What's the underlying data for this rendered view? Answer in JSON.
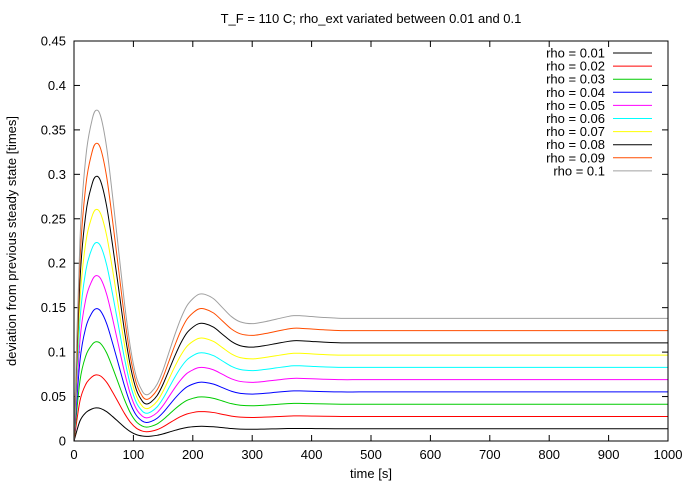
{
  "chart_data": {
    "type": "line",
    "title": "T_F = 110 C; rho_ext variated between 0.01 and 0.1",
    "xlabel": "time [s]",
    "ylabel": "deviation from previous steady state [times]",
    "xlim": [
      0,
      1000
    ],
    "ylim": [
      0,
      0.45
    ],
    "x_ticks": [
      0,
      100,
      200,
      300,
      400,
      500,
      600,
      700,
      800,
      900,
      1000
    ],
    "y_ticks": [
      0,
      0.05,
      0.1,
      0.15,
      0.2,
      0.25,
      0.3,
      0.35,
      0.4,
      0.45
    ],
    "x_tick_labels": [
      "0",
      "100",
      "200",
      "300",
      "400",
      "500",
      "600",
      "700",
      "800",
      "900",
      "1000"
    ],
    "y_tick_labels": [
      "0",
      "0.05",
      "0.1",
      "0.15",
      "0.2",
      "0.25",
      "0.3",
      "0.35",
      "0.4",
      "0.45"
    ],
    "grid": false,
    "legend_position": "top-right",
    "x": [
      0,
      10,
      20,
      30,
      37,
      45,
      55,
      65,
      75,
      85,
      95,
      105,
      115,
      122,
      130,
      140,
      150,
      160,
      170,
      180,
      190,
      200,
      210,
      220,
      235,
      250,
      265,
      280,
      300,
      320,
      340,
      360,
      370,
      380,
      400,
      420,
      450,
      480,
      520,
      600,
      700,
      800,
      900,
      1000
    ],
    "series": [
      {
        "name": "rho = 0.01",
        "color": "#000000",
        "values": [
          0,
          0.0225,
          0.032,
          0.036,
          0.0372,
          0.0365,
          0.033,
          0.0275,
          0.0215,
          0.0155,
          0.0105,
          0.0072,
          0.0056,
          0.0052,
          0.0055,
          0.0064,
          0.008,
          0.01,
          0.012,
          0.0138,
          0.0152,
          0.016,
          0.0165,
          0.0165,
          0.016,
          0.015,
          0.014,
          0.0134,
          0.0132,
          0.0134,
          0.0137,
          0.014,
          0.0141,
          0.0141,
          0.014,
          0.0139,
          0.0138,
          0.0138,
          0.0138,
          0.0138,
          0.0138,
          0.0138,
          0.0138,
          0.0138
        ]
      },
      {
        "name": "rho = 0.02",
        "color": "#ff0000",
        "values": [
          0,
          0.045,
          0.064,
          0.072,
          0.0744,
          0.073,
          0.066,
          0.055,
          0.043,
          0.031,
          0.021,
          0.0144,
          0.0112,
          0.0104,
          0.011,
          0.0128,
          0.016,
          0.02,
          0.024,
          0.0276,
          0.0304,
          0.032,
          0.033,
          0.033,
          0.032,
          0.03,
          0.028,
          0.0268,
          0.0264,
          0.0268,
          0.0274,
          0.028,
          0.0282,
          0.0282,
          0.028,
          0.0278,
          0.0276,
          0.0276,
          0.0276,
          0.0276,
          0.0276,
          0.0276,
          0.0276,
          0.0276
        ]
      },
      {
        "name": "rho = 0.03",
        "color": "#00cc00",
        "values": [
          0,
          0.0675,
          0.096,
          0.108,
          0.1116,
          0.1095,
          0.099,
          0.0825,
          0.0645,
          0.0465,
          0.0315,
          0.0216,
          0.0168,
          0.0156,
          0.0165,
          0.0192,
          0.024,
          0.03,
          0.036,
          0.0414,
          0.0456,
          0.048,
          0.0495,
          0.0495,
          0.048,
          0.045,
          0.042,
          0.0402,
          0.0396,
          0.0402,
          0.0411,
          0.042,
          0.0423,
          0.0423,
          0.042,
          0.0417,
          0.0414,
          0.0414,
          0.0414,
          0.0414,
          0.0414,
          0.0414,
          0.0414,
          0.0414
        ]
      },
      {
        "name": "rho = 0.04",
        "color": "#0000ff",
        "values": [
          0,
          0.09,
          0.128,
          0.144,
          0.1488,
          0.146,
          0.132,
          0.11,
          0.086,
          0.062,
          0.042,
          0.0288,
          0.0224,
          0.0208,
          0.022,
          0.0256,
          0.032,
          0.04,
          0.048,
          0.0552,
          0.0608,
          0.064,
          0.066,
          0.066,
          0.064,
          0.06,
          0.056,
          0.0536,
          0.0528,
          0.0536,
          0.0548,
          0.056,
          0.0564,
          0.0564,
          0.056,
          0.0556,
          0.0552,
          0.0552,
          0.0552,
          0.0552,
          0.0552,
          0.0552,
          0.0552,
          0.0552
        ]
      },
      {
        "name": "rho = 0.05",
        "color": "#ff00ff",
        "values": [
          0,
          0.1125,
          0.16,
          0.18,
          0.186,
          0.1825,
          0.165,
          0.1375,
          0.1075,
          0.0775,
          0.0525,
          0.036,
          0.028,
          0.026,
          0.0275,
          0.032,
          0.04,
          0.05,
          0.06,
          0.069,
          0.076,
          0.08,
          0.0825,
          0.0825,
          0.08,
          0.075,
          0.07,
          0.067,
          0.066,
          0.067,
          0.0685,
          0.07,
          0.0705,
          0.0705,
          0.07,
          0.0695,
          0.069,
          0.069,
          0.069,
          0.069,
          0.069,
          0.069,
          0.069,
          0.069
        ]
      },
      {
        "name": "rho = 0.06",
        "color": "#00ffff",
        "values": [
          0,
          0.135,
          0.192,
          0.216,
          0.2232,
          0.219,
          0.198,
          0.165,
          0.129,
          0.093,
          0.063,
          0.0432,
          0.0336,
          0.0312,
          0.033,
          0.0384,
          0.048,
          0.06,
          0.072,
          0.0828,
          0.0912,
          0.096,
          0.099,
          0.099,
          0.096,
          0.09,
          0.084,
          0.0804,
          0.0792,
          0.0804,
          0.0822,
          0.084,
          0.0846,
          0.0846,
          0.084,
          0.0834,
          0.0828,
          0.0828,
          0.0828,
          0.0828,
          0.0828,
          0.0828,
          0.0828,
          0.0828
        ]
      },
      {
        "name": "rho = 0.07",
        "color": "#ffff00",
        "values": [
          0,
          0.1575,
          0.224,
          0.252,
          0.2604,
          0.2555,
          0.231,
          0.1925,
          0.1505,
          0.1085,
          0.0735,
          0.0504,
          0.0392,
          0.0364,
          0.0385,
          0.0448,
          0.056,
          0.07,
          0.084,
          0.0966,
          0.1064,
          0.112,
          0.1155,
          0.1155,
          0.112,
          0.105,
          0.098,
          0.0938,
          0.0924,
          0.0938,
          0.0959,
          0.098,
          0.0987,
          0.0987,
          0.098,
          0.0973,
          0.0966,
          0.0966,
          0.0966,
          0.0966,
          0.0966,
          0.0966,
          0.0966,
          0.0966
        ]
      },
      {
        "name": "rho = 0.08",
        "color": "#000000",
        "values": [
          0,
          0.18,
          0.256,
          0.288,
          0.2976,
          0.292,
          0.264,
          0.22,
          0.172,
          0.124,
          0.084,
          0.0576,
          0.0448,
          0.0416,
          0.044,
          0.0512,
          0.064,
          0.08,
          0.096,
          0.1104,
          0.1216,
          0.128,
          0.132,
          0.132,
          0.128,
          0.12,
          0.112,
          0.1072,
          0.1056,
          0.1072,
          0.1096,
          0.112,
          0.1128,
          0.1128,
          0.112,
          0.1112,
          0.1104,
          0.1104,
          0.1104,
          0.1104,
          0.1104,
          0.1104,
          0.1104,
          0.1104
        ]
      },
      {
        "name": "rho = 0.09",
        "color": "#ff4d00",
        "values": [
          0,
          0.2025,
          0.288,
          0.324,
          0.3348,
          0.3285,
          0.297,
          0.2475,
          0.1935,
          0.1395,
          0.0945,
          0.0648,
          0.0504,
          0.0468,
          0.0495,
          0.0576,
          0.072,
          0.09,
          0.108,
          0.1242,
          0.1368,
          0.144,
          0.1485,
          0.1485,
          0.144,
          0.135,
          0.126,
          0.1206,
          0.1188,
          0.1206,
          0.1233,
          0.126,
          0.1269,
          0.1269,
          0.126,
          0.1251,
          0.1242,
          0.1242,
          0.1242,
          0.1242,
          0.1242,
          0.1242,
          0.1242,
          0.1242
        ]
      },
      {
        "name": "rho = 0.1",
        "color": "#a0a0a0",
        "values": [
          0,
          0.225,
          0.32,
          0.36,
          0.372,
          0.365,
          0.33,
          0.275,
          0.215,
          0.155,
          0.105,
          0.072,
          0.056,
          0.052,
          0.055,
          0.064,
          0.08,
          0.1,
          0.12,
          0.138,
          0.152,
          0.16,
          0.165,
          0.165,
          0.16,
          0.15,
          0.14,
          0.134,
          0.132,
          0.134,
          0.137,
          0.14,
          0.141,
          0.141,
          0.14,
          0.139,
          0.138,
          0.138,
          0.138,
          0.138,
          0.138,
          0.138,
          0.138,
          0.138
        ]
      }
    ]
  }
}
